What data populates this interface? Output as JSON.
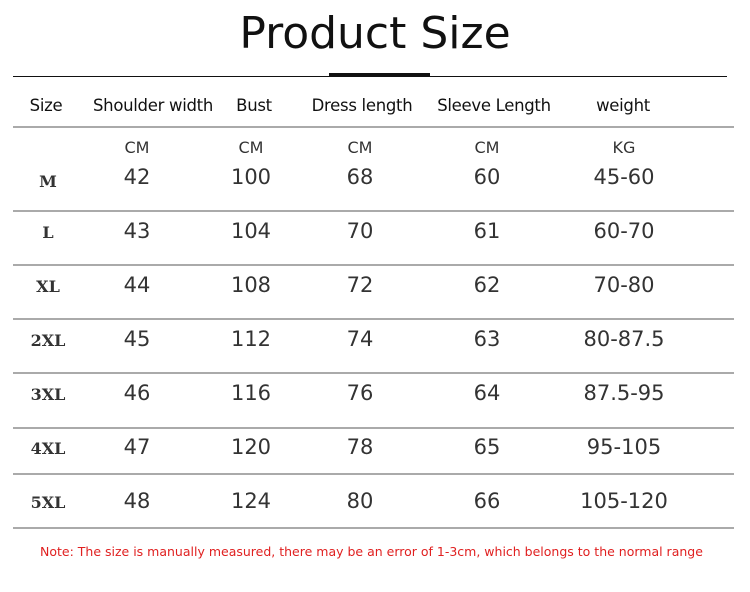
{
  "title": "Product Size",
  "headers": [
    "Size",
    "Shoulder width",
    "Bust",
    "Dress length",
    "Sleeve Length",
    "weight"
  ],
  "units": [
    "CM",
    "CM",
    "CM",
    "CM",
    "KG"
  ],
  "rows": [
    {
      "size": "M",
      "values": [
        "42",
        "100",
        "68",
        "60",
        "45-60"
      ]
    },
    {
      "size": "L",
      "values": [
        "43",
        "104",
        "70",
        "61",
        "60-70"
      ]
    },
    {
      "size": "XL",
      "values": [
        "44",
        "108",
        "72",
        "62",
        "70-80"
      ]
    },
    {
      "size": "2XL",
      "values": [
        "45",
        "112",
        "74",
        "63",
        "80-87.5"
      ]
    },
    {
      "size": "3XL",
      "values": [
        "46",
        "116",
        "76",
        "64",
        "87.5-95"
      ]
    },
    {
      "size": "4XL",
      "values": [
        "47",
        "120",
        "78",
        "65",
        "95-105"
      ]
    },
    {
      "size": "5XL",
      "values": [
        "48",
        "124",
        "80",
        "66",
        "105-120"
      ]
    }
  ],
  "note": "Note: The size is manually measured, there may be an error of 1-3cm, which belongs to the normal range",
  "colors": {
    "note": "#e02020",
    "rule": "#aaaaaa"
  }
}
